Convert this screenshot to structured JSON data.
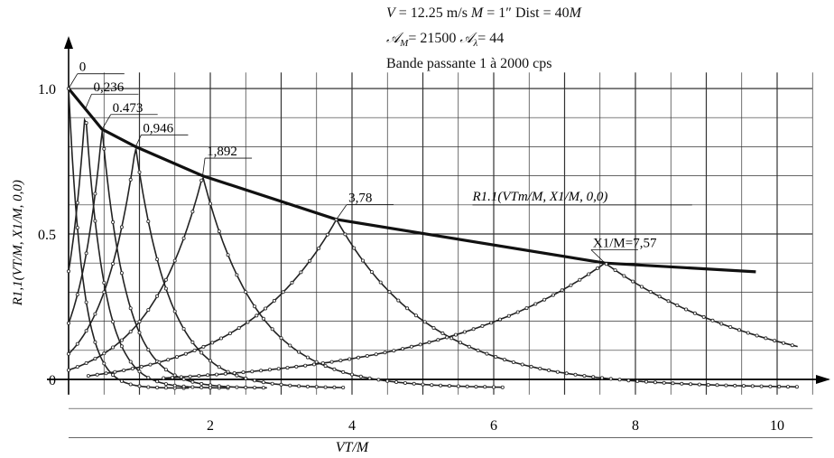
{
  "header": {
    "line1": {
      "v": "V",
      "v_val": " = 12.25 m/s   ",
      "m": "M",
      "m_val": " = 1″   Dist  = 40",
      "m2": "M"
    },
    "line2": {
      "am": "𝒜",
      "am_sub": "M",
      "am_val": "= 21500  ",
      "al": "𝒜",
      "al_sub": "λ",
      "al_val": "= 44"
    },
    "line3": "Bande passante 1 à 2000 cps"
  },
  "chart_data": {
    "type": "line",
    "xlabel": "VT/M",
    "ylabel": "R1,1(VT/M, X1/M, 0,0)",
    "xlim": [
      0,
      10.5
    ],
    "ylim": [
      -0.04,
      1.08
    ],
    "x_ticks": [
      "2",
      "4",
      "6",
      "8",
      "10"
    ],
    "x_tick_values": [
      2,
      4,
      6,
      8,
      10
    ],
    "y_ticks": [
      "0",
      "0.5",
      "1.0"
    ],
    "y_tick_values": [
      0,
      0.5,
      1.0
    ],
    "grid": true,
    "envelope": {
      "label": "R1.1(VTm/M, X1/M, 0,0)",
      "x": [
        0,
        0.236,
        0.473,
        0.946,
        1.892,
        3.78,
        7.57,
        9.7
      ],
      "y": [
        1.0,
        0.93,
        0.86,
        0.8,
        0.7,
        0.55,
        0.4,
        0.37
      ]
    },
    "series": [
      {
        "label": "0",
        "peak_x": 0,
        "peak_y": 1.0
      },
      {
        "label": "0,236",
        "peak_x": 0.236,
        "peak_y": 0.93
      },
      {
        "label": "0.473",
        "peak_x": 0.473,
        "peak_y": 0.86
      },
      {
        "label": "0,946",
        "peak_x": 0.946,
        "peak_y": 0.8
      },
      {
        "label": "1,892",
        "peak_x": 1.892,
        "peak_y": 0.7
      },
      {
        "label": "3,78",
        "peak_x": 3.78,
        "peak_y": 0.55
      },
      {
        "label": "X1/M=7,57",
        "peak_x": 7.57,
        "peak_y": 0.4
      }
    ]
  }
}
